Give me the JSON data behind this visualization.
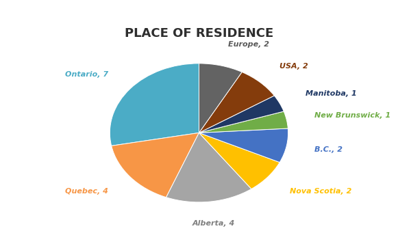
{
  "title": "PLACE OF RESIDENCE",
  "slices": [
    {
      "label": "Ontario, 7",
      "value": 7,
      "color": "#4BACC6"
    },
    {
      "label": "Quebec, 4",
      "value": 4,
      "color": "#F79646"
    },
    {
      "label": "Alberta, 4",
      "value": 4,
      "color": "#A5A5A5"
    },
    {
      "label": "Nova Scotia, 2",
      "value": 2,
      "color": "#FFC000"
    },
    {
      "label": "B.C., 2",
      "value": 2,
      "color": "#4472C4"
    },
    {
      "label": "New Brunswick, 1",
      "value": 1,
      "color": "#70AD47"
    },
    {
      "label": "Manitoba, 1",
      "value": 1,
      "color": "#1F3864"
    },
    {
      "label": "USA, 2",
      "value": 2,
      "color": "#843C0C"
    },
    {
      "label": "Europe, 2",
      "value": 2,
      "color": "#636363"
    }
  ],
  "label_colors": {
    "Ontario, 7": "#4BACC6",
    "Quebec, 4": "#F79646",
    "Alberta, 4": "#808080",
    "Nova Scotia, 2": "#FFC000",
    "B.C., 2": "#4472C4",
    "New Brunswick, 1": "#70AD47",
    "Manitoba, 1": "#1F3864",
    "USA, 2": "#843C0C",
    "Europe, 2": "#595959"
  },
  "startangle": 90,
  "background_color": "#FFFFFF",
  "title_fontsize": 13,
  "label_fontsize": 8.0
}
